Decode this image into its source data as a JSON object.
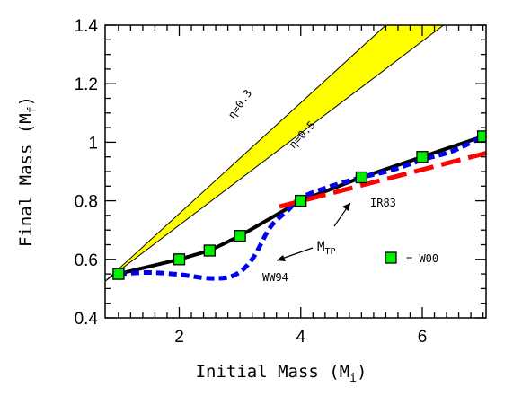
{
  "chart_data": {
    "type": "line",
    "title": "",
    "xlabel": {
      "main": "Initial Mass (M",
      "sub": "i",
      "end": ")"
    },
    "ylabel": {
      "main": "Final Mass (M",
      "sub": "f",
      "end": ")"
    },
    "xlim": [
      0.78,
      7.05
    ],
    "ylim": [
      0.4,
      1.4
    ],
    "xticks": [
      2,
      4,
      6
    ],
    "yticks": [
      0.4,
      0.6,
      0.8,
      1.0,
      1.2,
      1.4
    ],
    "xtick_labels": [
      "2",
      "4",
      "6"
    ],
    "ytick_labels": [
      "0.4",
      "0.6",
      "0.8",
      "1",
      "1.2",
      "1.4"
    ],
    "grid": false,
    "band": {
      "color": "#ffff00",
      "upper": [
        [
          0.78,
          0.525
        ],
        [
          5.4,
          1.4
        ]
      ],
      "lower": [
        [
          0.78,
          0.525
        ],
        [
          6.35,
          1.4
        ]
      ]
    },
    "series": [
      {
        "name": "",
        "style": "solid",
        "color": "#000000",
        "x": [
          1,
          2,
          2.5,
          3,
          4,
          5,
          6,
          7
        ],
        "y": [
          0.55,
          0.6,
          0.63,
          0.68,
          0.8,
          0.88,
          0.95,
          1.02
        ]
      },
      {
        "name": "W00",
        "style": "markers",
        "color": "#00ee00",
        "x": [
          1,
          2,
          2.5,
          3,
          4,
          5,
          6,
          7
        ],
        "y": [
          0.55,
          0.6,
          0.63,
          0.68,
          0.8,
          0.88,
          0.95,
          1.02
        ]
      },
      {
        "name": "WW94",
        "style": "dotted",
        "color": "#0000ee",
        "x": [
          1,
          1.5,
          2,
          2.5,
          2.9,
          3.2,
          3.5,
          3.8,
          4.0,
          4.5,
          5,
          5.5,
          6,
          6.5,
          7
        ],
        "y": [
          0.55,
          0.555,
          0.548,
          0.535,
          0.545,
          0.6,
          0.71,
          0.77,
          0.81,
          0.85,
          0.88,
          0.905,
          0.94,
          0.97,
          1.02
        ]
      },
      {
        "name": "IR83",
        "style": "dashed",
        "color": "#ff0000",
        "x": [
          3.65,
          7.05
        ],
        "y": [
          0.78,
          0.963
        ]
      }
    ],
    "annotations": {
      "eta1": "η=0.3",
      "eta2": "η=0.5",
      "ir83": "IR83",
      "mtp_main": "M",
      "mtp_sub": "TP",
      "ww94": "WW94",
      "legend_text": "= W00"
    }
  }
}
